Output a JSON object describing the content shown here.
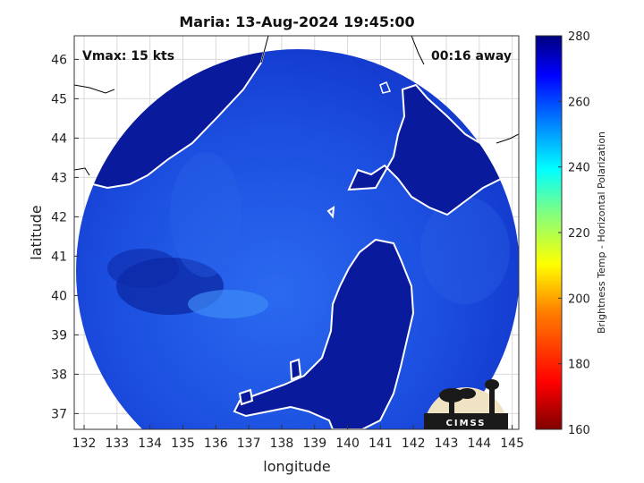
{
  "title": "Maria: 13-Aug-2024 19:45:00",
  "vmax_label": "Vmax: 15 kts",
  "time_label": "00:16 away",
  "xaxis": {
    "label": "longitude",
    "range": [
      131.7,
      145.2
    ],
    "ticks": [
      "132",
      "133",
      "134",
      "135",
      "136",
      "137",
      "138",
      "139",
      "140",
      "141",
      "142",
      "143",
      "144",
      "145"
    ]
  },
  "yaxis": {
    "label": "latitude",
    "range": [
      36.6,
      46.6
    ],
    "ticks": [
      "37",
      "38",
      "39",
      "40",
      "41",
      "42",
      "43",
      "44",
      "45",
      "46"
    ]
  },
  "colorbar": {
    "label": "Brightness Temp - Horizontal Polarization",
    "range": [
      160,
      280
    ],
    "ticks": [
      "160",
      "180",
      "200",
      "220",
      "240",
      "260",
      "280"
    ],
    "colors": [
      "#800000",
      "#ff0000",
      "#ff8000",
      "#ffff00",
      "#80ff80",
      "#00ffff",
      "#0080ff",
      "#0000ff",
      "#000080"
    ]
  },
  "logo_text": "CIMSS",
  "colors": {
    "land": "#0a1a9c",
    "ocean": "#1a44d8",
    "coast": "#ffffff",
    "grid": "#d9d9d9"
  }
}
